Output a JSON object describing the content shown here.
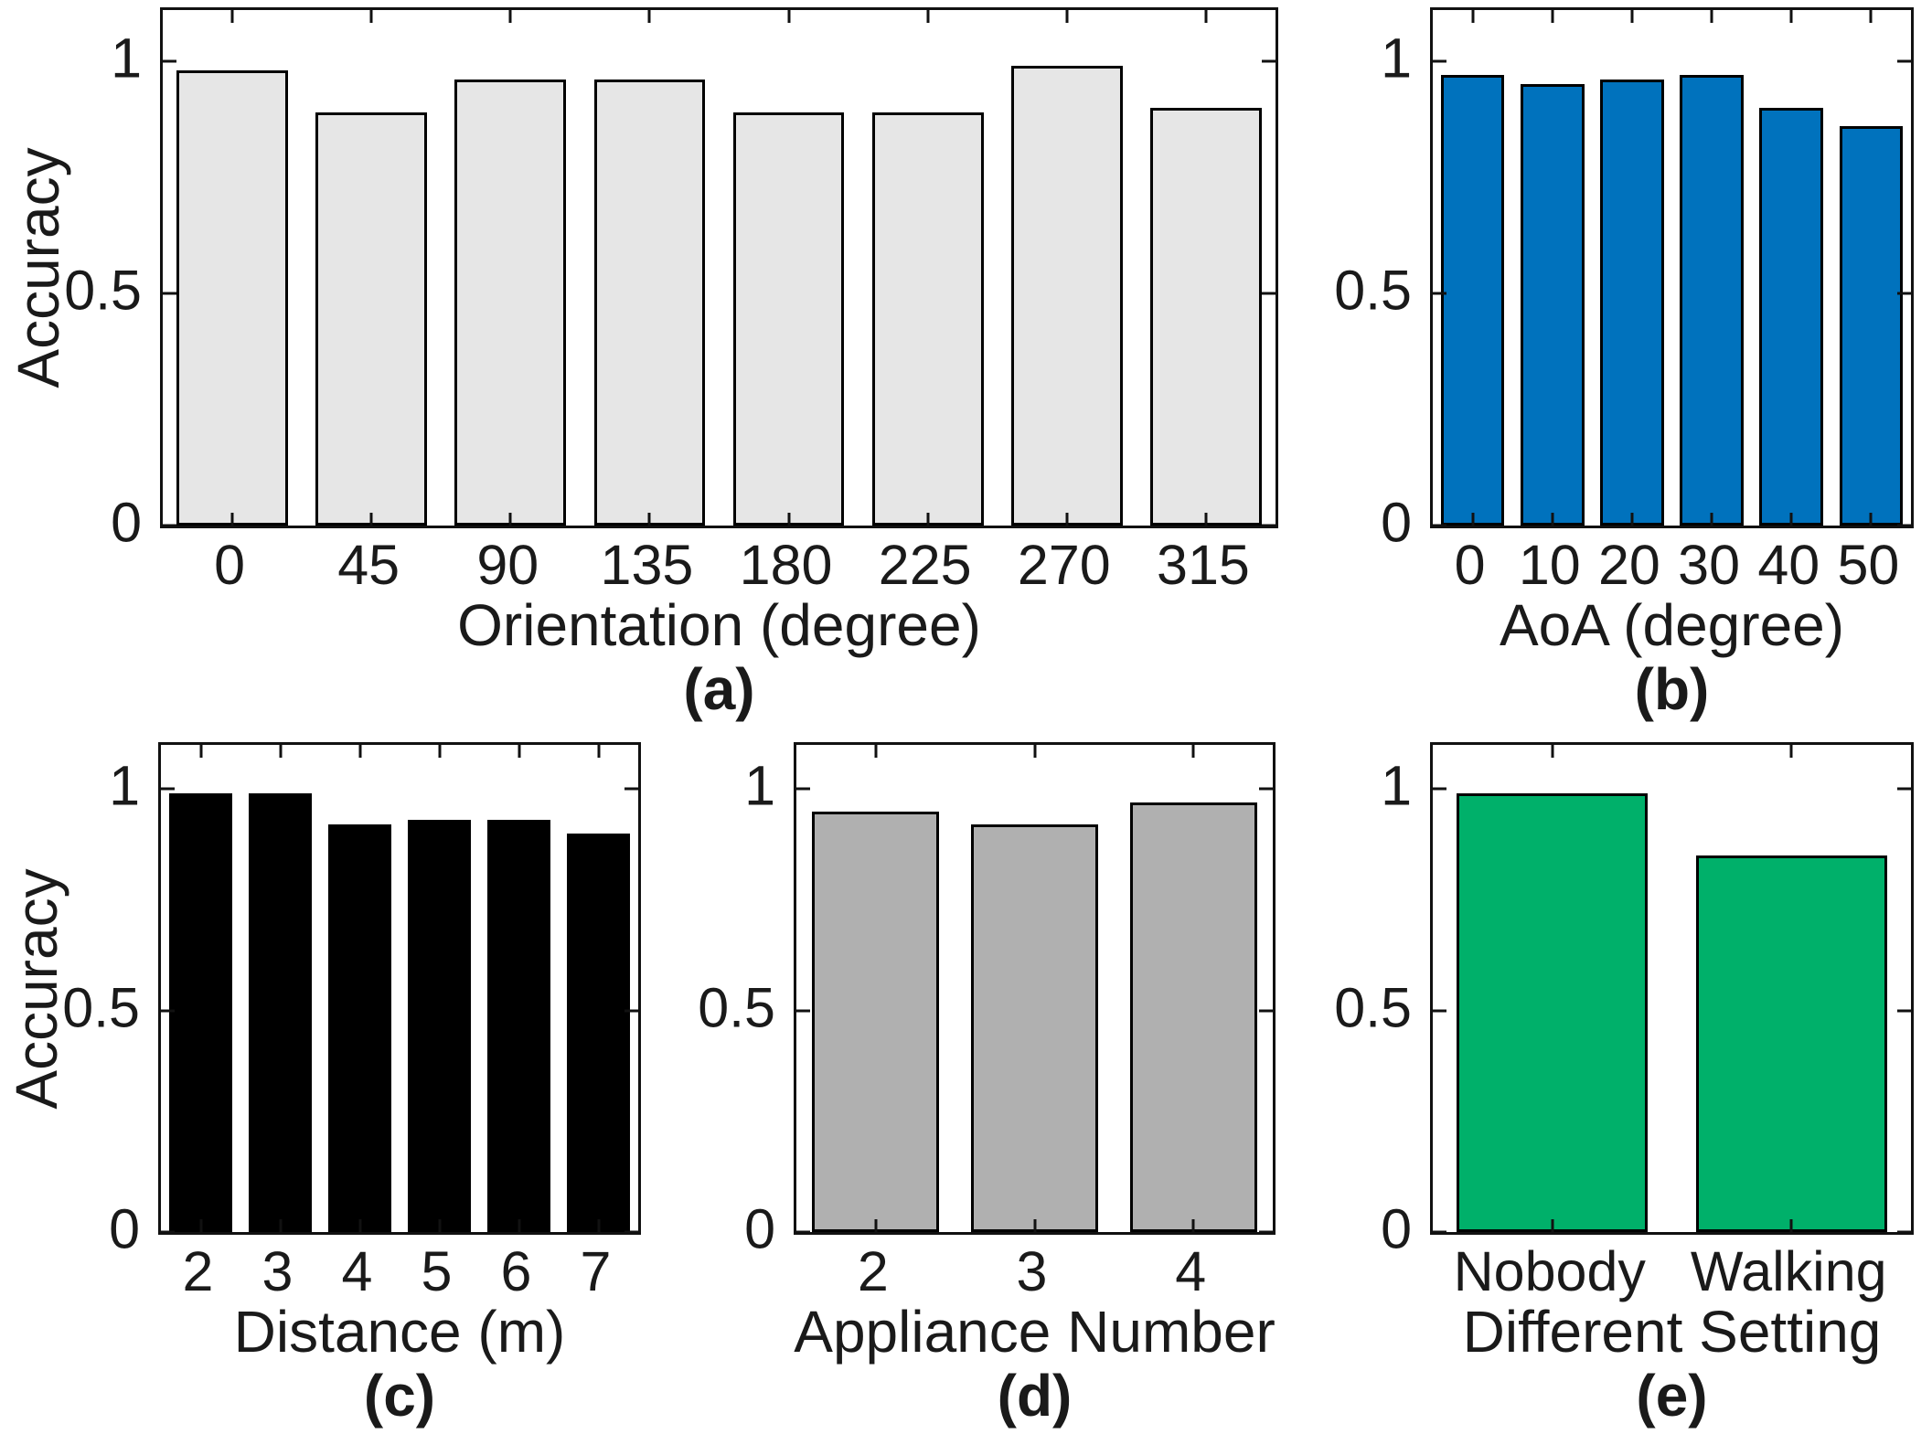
{
  "figure": {
    "background": "#ffffff",
    "axes_color": "#111111",
    "text_color": "#1a1a1a"
  },
  "chart_data": [
    {
      "id": "a",
      "type": "bar",
      "categories": [
        "0",
        "45",
        "90",
        "135",
        "180",
        "225",
        "270",
        "315"
      ],
      "values": [
        0.98,
        0.89,
        0.96,
        0.96,
        0.89,
        0.89,
        0.99,
        0.9
      ],
      "title": "",
      "xlabel": "Orientation (degree)",
      "ylabel": "Accuracy",
      "caption": "(a)",
      "yticks": [
        0,
        0.5,
        1
      ],
      "ytick_labels": [
        "0",
        "0.5",
        "1"
      ],
      "ylim": [
        0,
        1.11
      ],
      "bar_color": "#e6e6e6",
      "bar_edge": "#000000",
      "grid": false,
      "legend": null
    },
    {
      "id": "b",
      "type": "bar",
      "categories": [
        "0",
        "10",
        "20",
        "30",
        "40",
        "50"
      ],
      "values": [
        0.97,
        0.95,
        0.96,
        0.97,
        0.9,
        0.86
      ],
      "title": "",
      "xlabel": "AoA (degree)",
      "ylabel": "",
      "caption": "(b)",
      "yticks": [
        0,
        0.5,
        1
      ],
      "ytick_labels": [
        "0",
        "0.5",
        "1"
      ],
      "ylim": [
        0,
        1.11
      ],
      "bar_color": "#0072bd",
      "bar_edge": "#000000",
      "grid": false,
      "legend": null
    },
    {
      "id": "c",
      "type": "bar",
      "categories": [
        "2",
        "3",
        "4",
        "5",
        "6",
        "7"
      ],
      "values": [
        0.99,
        0.99,
        0.92,
        0.93,
        0.93,
        0.9
      ],
      "title": "",
      "xlabel": "Distance (m)",
      "ylabel": "Accuracy",
      "caption": "(c)",
      "yticks": [
        0,
        0.5,
        1
      ],
      "ytick_labels": [
        "0",
        "0.5",
        "1"
      ],
      "ylim": [
        0,
        1.1
      ],
      "bar_color": "#000000",
      "bar_edge": "#000000",
      "grid": false,
      "legend": null
    },
    {
      "id": "d",
      "type": "bar",
      "categories": [
        "2",
        "3",
        "4"
      ],
      "values": [
        0.95,
        0.92,
        0.97
      ],
      "title": "",
      "xlabel": "Appliance Number",
      "ylabel": "",
      "caption": "(d)",
      "yticks": [
        0,
        0.5,
        1
      ],
      "ytick_labels": [
        "0",
        "0.5",
        "1"
      ],
      "ylim": [
        0,
        1.1
      ],
      "bar_color": "#b0b0b0",
      "bar_edge": "#000000",
      "grid": false,
      "legend": null
    },
    {
      "id": "e",
      "type": "bar",
      "categories": [
        "Nobody",
        "Walking"
      ],
      "values": [
        0.99,
        0.85
      ],
      "title": "",
      "xlabel": "Different Setting",
      "ylabel": "",
      "caption": "(e)",
      "yticks": [
        0,
        0.5,
        1
      ],
      "ytick_labels": [
        "0",
        "0.5",
        "1"
      ],
      "ylim": [
        0,
        1.1
      ],
      "bar_color": "#00b06a",
      "bar_edge": "#000000",
      "grid": false,
      "legend": null
    }
  ]
}
